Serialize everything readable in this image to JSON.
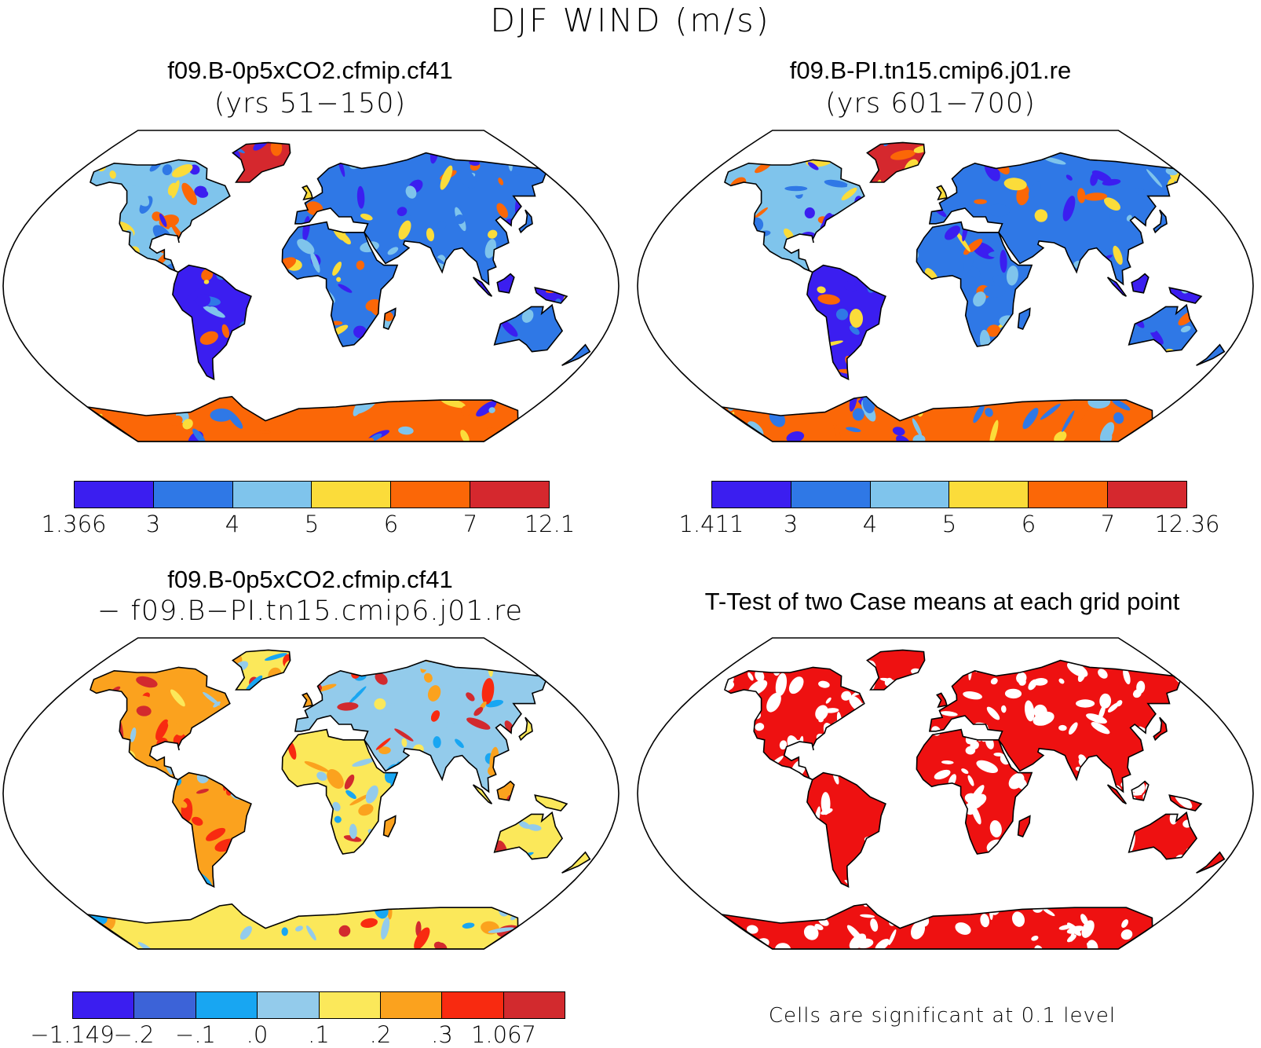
{
  "title": "DJF WIND (m/s)",
  "panels": [
    {
      "title": "f09.B-0p5xCO2.cfmip.cf41",
      "subtitle": "(yrs 51−150)"
    },
    {
      "title": "f09.B-PI.tn15.cmip6.j01.re",
      "subtitle": "(yrs 601−700)"
    },
    {
      "title": "f09.B-0p5xCO2.cfmip.cf41",
      "subtitle": "− f09.B−PI.tn15.cmip6.j01.re"
    },
    {
      "title": "T-Test of two Case means at each grid point",
      "subtitle": ""
    }
  ],
  "colorbars": [
    {
      "colors": [
        "#3b1ef0",
        "#2f78e6",
        "#7fc4ec",
        "#fbdc3a",
        "#fb6707",
        "#d5282e"
      ],
      "labels": [
        "1.366",
        "3",
        "4",
        "5",
        "6",
        "7",
        "12.1"
      ]
    },
    {
      "colors": [
        "#3b1ef0",
        "#2f78e6",
        "#7fc4ec",
        "#fbdc3a",
        "#fb6707",
        "#d5282e"
      ],
      "labels": [
        "1.411",
        "3",
        "4",
        "5",
        "6",
        "7",
        "12.36"
      ]
    },
    {
      "colors": [
        "#3b1ef0",
        "#3c63d8",
        "#18a6f2",
        "#93cbeb",
        "#fbe85a",
        "#fba21e",
        "#f82a10",
        "#d22a2e"
      ],
      "labels": [
        "−1.149",
        "−.2",
        "−.1",
        ".0",
        ".1",
        ".2",
        ".3",
        "1.067"
      ]
    }
  ],
  "significance_color": "#ee1111",
  "significance_note": "Cells are significant at 0.1 level"
}
